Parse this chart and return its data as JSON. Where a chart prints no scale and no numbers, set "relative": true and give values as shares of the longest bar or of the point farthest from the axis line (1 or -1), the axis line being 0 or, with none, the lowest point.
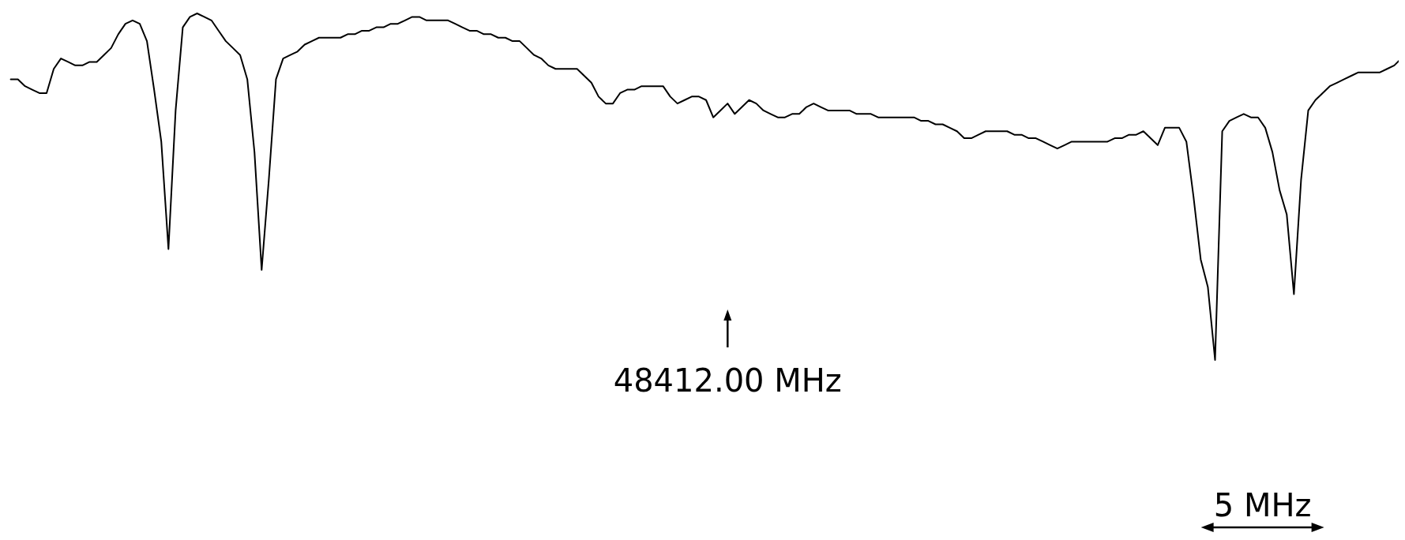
{
  "chart_data": {
    "type": "line",
    "relative": true,
    "categories": [
      null,
      null,
      null,
      null,
      null,
      null,
      null,
      null,
      null,
      null,
      null,
      null,
      null,
      null,
      null,
      null,
      null,
      null,
      null,
      null,
      null,
      null,
      null,
      null,
      null,
      null,
      null,
      null,
      null,
      null,
      null,
      null,
      null,
      null,
      null,
      null,
      null,
      null,
      null,
      null,
      null,
      null,
      null,
      null,
      null,
      null,
      null,
      null,
      null,
      null,
      null,
      null,
      null,
      null,
      null,
      null,
      null,
      null,
      null,
      null,
      null,
      null,
      null,
      null,
      null,
      null,
      null,
      null,
      null,
      null,
      null,
      null,
      null,
      null,
      null,
      null,
      null,
      null,
      null,
      null,
      null,
      null,
      null,
      null,
      null,
      null,
      null,
      null,
      null,
      null,
      null,
      null,
      null,
      null,
      null,
      null,
      null,
      null,
      null,
      null,
      null,
      null,
      null,
      null,
      null,
      null,
      null,
      null,
      null,
      null,
      null,
      null,
      null,
      null,
      null,
      null,
      null,
      null,
      null,
      null,
      null,
      null,
      null,
      null,
      null,
      null,
      null,
      null,
      null,
      null,
      null,
      null,
      null,
      null,
      null,
      null,
      null,
      null,
      null,
      null,
      null,
      null,
      null,
      null,
      null,
      null,
      null,
      null,
      null,
      null,
      null,
      null,
      null,
      null,
      null,
      null,
      null,
      null,
      null,
      null,
      null,
      null,
      null,
      null,
      null,
      null,
      null,
      null,
      null,
      null,
      null,
      null,
      null,
      null,
      null,
      null,
      null,
      null,
      null,
      null,
      null,
      null,
      null,
      null,
      null,
      null,
      null,
      null,
      null,
      null,
      null,
      null,
      null,
      null,
      null
    ],
    "series": [
      {
        "color": "#000000",
        "values": [
          0.81,
          0.81,
          0.79,
          0.78,
          0.77,
          0.77,
          0.84,
          0.87,
          0.86,
          0.85,
          0.85,
          0.86,
          0.86,
          0.88,
          0.9,
          0.94,
          0.97,
          0.98,
          0.97,
          0.92,
          0.78,
          0.63,
          0.32,
          0.72,
          0.96,
          0.99,
          1,
          0.99,
          0.98,
          0.95,
          0.92,
          0.9,
          0.88,
          0.81,
          0.6,
          0.26,
          0.52,
          0.81,
          0.87,
          0.88,
          0.89,
          0.91,
          0.92,
          0.93,
          0.93,
          0.93,
          0.93,
          0.94,
          0.94,
          0.95,
          0.95,
          0.96,
          0.96,
          0.97,
          0.97,
          0.98,
          0.99,
          0.99,
          0.98,
          0.98,
          0.98,
          0.98,
          0.97,
          0.96,
          0.95,
          0.95,
          0.94,
          0.94,
          0.93,
          0.93,
          0.92,
          0.92,
          0.9,
          0.88,
          0.87,
          0.85,
          0.84,
          0.84,
          0.84,
          0.84,
          0.82,
          0.8,
          0.76,
          0.74,
          0.74,
          0.77,
          0.78,
          0.78,
          0.79,
          0.79,
          0.79,
          0.79,
          0.76,
          0.74,
          0.75,
          0.76,
          0.76,
          0.75,
          0.7,
          0.72,
          0.74,
          0.71,
          0.73,
          0.75,
          0.74,
          0.72,
          0.71,
          0.7,
          0.7,
          0.71,
          0.71,
          0.73,
          0.74,
          0.73,
          0.72,
          0.72,
          0.72,
          0.72,
          0.71,
          0.71,
          0.71,
          0.7,
          0.7,
          0.7,
          0.7,
          0.7,
          0.7,
          0.69,
          0.69,
          0.68,
          0.68,
          0.67,
          0.66,
          0.64,
          0.64,
          0.65,
          0.66,
          0.66,
          0.66,
          0.66,
          0.65,
          0.65,
          0.64,
          0.64,
          0.63,
          0.62,
          0.61,
          0.62,
          0.63,
          0.63,
          0.63,
          0.63,
          0.63,
          0.63,
          0.64,
          0.64,
          0.65,
          0.65,
          0.66,
          0.64,
          0.62,
          0.67,
          0.67,
          0.67,
          0.63,
          0.47,
          0.29,
          0.21,
          0,
          0.66,
          0.69,
          0.7,
          0.71,
          0.7,
          0.7,
          0.67,
          0.6,
          0.49,
          0.42,
          0.19,
          0.52,
          0.72,
          0.75,
          0.77,
          0.79,
          0.8,
          0.81,
          0.82,
          0.83,
          0.83,
          0.83,
          0.83,
          0.84,
          0.85,
          0.87
        ]
      }
    ],
    "annotations": [
      "48412.00 MHz",
      "5 MHz"
    ]
  }
}
